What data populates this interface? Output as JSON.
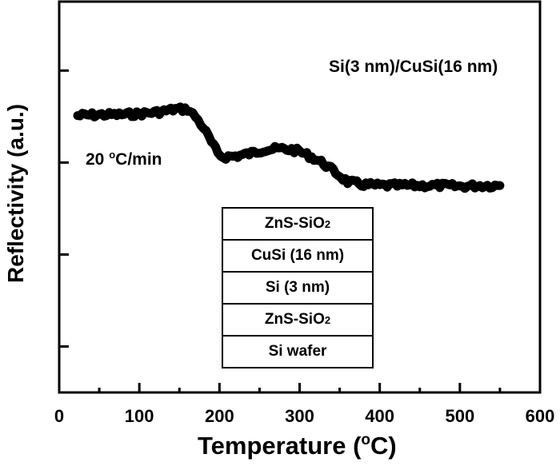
{
  "chart_data": {
    "type": "line",
    "title": "",
    "xlabel": "Temperature (°C)",
    "ylabel": "Reflectivity (a.u.)",
    "xlim": [
      0,
      600
    ],
    "ylim": [
      0,
      4.25
    ],
    "x_ticks": [
      0,
      100,
      200,
      300,
      400,
      500,
      600
    ],
    "x_minor_ticks": [
      50,
      150,
      250,
      350,
      450,
      550
    ],
    "y_ticks_unlabeled": [
      0.5,
      1.5,
      2.5,
      3.5
    ],
    "y_tick_labels_shown": false,
    "grid": false,
    "legend": null,
    "series": [
      {
        "name": "Si(3 nm)/CuSi(16 nm)",
        "color": "#000000",
        "x": [
          23,
          50,
          75,
          100,
          125,
          145,
          160,
          170,
          180,
          190,
          198,
          205,
          220,
          240,
          255,
          275,
          290,
          300,
          315,
          330,
          345,
          360,
          380,
          400,
          425,
          450,
          475,
          500,
          525,
          550
        ],
        "y": [
          3.01,
          3.02,
          3.02,
          3.03,
          3.05,
          3.08,
          3.08,
          3.0,
          2.88,
          2.72,
          2.6,
          2.56,
          2.57,
          2.6,
          2.64,
          2.65,
          2.64,
          2.62,
          2.56,
          2.49,
          2.39,
          2.29,
          2.26,
          2.25,
          2.25,
          2.25,
          2.25,
          2.24,
          2.25,
          2.25
        ]
      }
    ],
    "annotations": [
      {
        "text": "Si(3 nm)/CuSi(16 nm)",
        "position": "top-right"
      },
      {
        "text": "20 °C/min",
        "position": "upper-left"
      }
    ],
    "inset_layer_stack": [
      "ZnS-SiO2",
      "CuSi (16 nm)",
      "Si (3 nm)",
      "ZnS-SiO2",
      "Si wafer"
    ]
  },
  "axes": {
    "x_label_main": "Temperature (",
    "x_label_degree": "o",
    "x_label_unit": "C)",
    "y_label": "Reflectivity (a.u.)",
    "x_tick_labels": [
      "0",
      "100",
      "200",
      "300",
      "400",
      "500",
      "600"
    ]
  },
  "annotations": {
    "sample": "Si(3 nm)/CuSi(16 nm)",
    "rate_value": "20 ",
    "rate_degree": "o",
    "rate_unit": "C/min"
  },
  "stack": {
    "layers": [
      {
        "main": "ZnS-SiO",
        "sub": "2"
      },
      {
        "main": "CuSi (16 nm)",
        "sub": ""
      },
      {
        "main": "Si (3 nm)",
        "sub": ""
      },
      {
        "main": "ZnS-SiO",
        "sub": "2"
      },
      {
        "main": "Si wafer",
        "sub": ""
      }
    ]
  }
}
